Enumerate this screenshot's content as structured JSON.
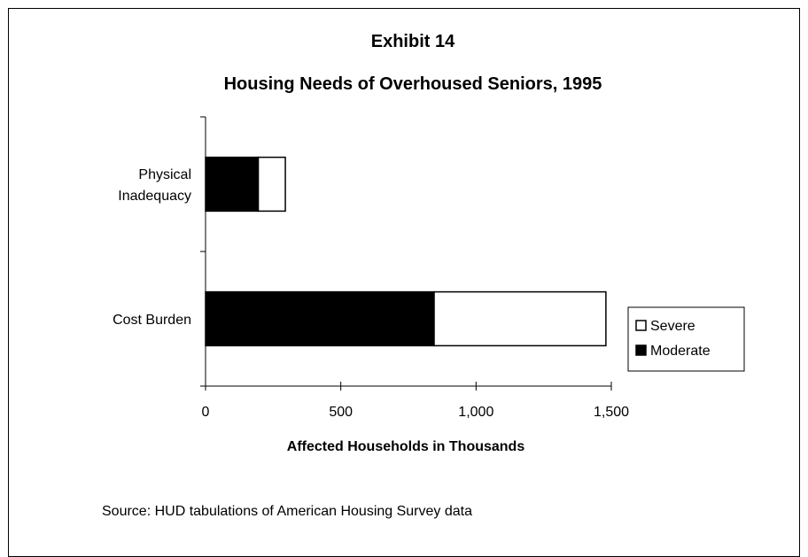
{
  "chart_data": {
    "type": "bar",
    "orientation": "horizontal",
    "stacked": true,
    "title_lines": [
      "Exhibit 14",
      "Housing Needs of Overhoused Seniors, 1995"
    ],
    "categories": [
      {
        "label_lines": [
          "Physical",
          "Inadequacy"
        ]
      },
      {
        "label_lines": [
          "Cost Burden"
        ]
      }
    ],
    "series": [
      {
        "name": "Moderate",
        "values": [
          195,
          845
        ],
        "color": "#000000"
      },
      {
        "name": "Severe",
        "values": [
          100,
          635
        ],
        "color": "#ffffff"
      }
    ],
    "legend_order": [
      "Severe",
      "Moderate"
    ],
    "legend_position": "right",
    "xlabel": "Affected Households in Thousands",
    "xlim": [
      0,
      1500
    ],
    "xticks": [
      0,
      500,
      1000,
      1500
    ],
    "xtick_labels": [
      "0",
      "500",
      "1,000",
      "1,500"
    ],
    "grid": false,
    "source": "Source: HUD tabulations of American Housing Survey data"
  }
}
